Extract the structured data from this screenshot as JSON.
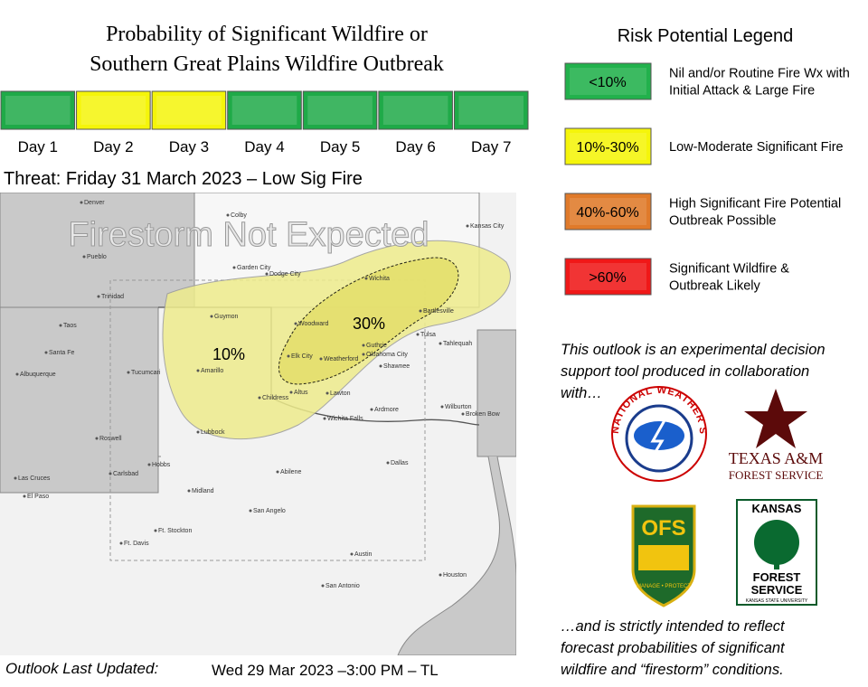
{
  "header": {
    "title_lines": [
      "Probability of  Significant Wildfire or",
      "Southern Great Plains Wildfire Outbreak"
    ]
  },
  "days": [
    {
      "label": "Day 1",
      "color": "#1faa48"
    },
    {
      "label": "Day 2",
      "color": "#f5f50a"
    },
    {
      "label": "Day 3",
      "color": "#f5f50a"
    },
    {
      "label": "Day 4",
      "color": "#1faa48"
    },
    {
      "label": "Day 5",
      "color": "#1faa48"
    },
    {
      "label": "Day 6",
      "color": "#1faa48"
    },
    {
      "label": "Day 7",
      "color": "#1faa48"
    }
  ],
  "threat": "Threat: Friday 31 March 2023 – Low Sig Fire",
  "map": {
    "banner": "Firestorm Not Expected",
    "areas": [
      {
        "label": "10%",
        "color": "#eeec8c"
      },
      {
        "label": "30%",
        "color": "#e4df6a"
      }
    ],
    "cities": [
      "Denver",
      "Colby",
      "Pueblo",
      "Garden City",
      "Dodge City",
      "Wichita",
      "Kansas City",
      "Trinidad",
      "Guymon",
      "Woodward",
      "Bartlesville",
      "Tulsa",
      "Taos",
      "Santa Fe",
      "Albuquerque",
      "Tucumcari",
      "Amarillo",
      "Elk City",
      "Weatherford",
      "Guthrie",
      "Oklahoma City",
      "Shawnee",
      "Tahlequah",
      "Childress",
      "Altus",
      "Lawton",
      "Wichita Falls",
      "Ardmore",
      "Wilburton",
      "Broken Bow",
      "Lubbock",
      "Roswell",
      "Hobbs",
      "Carlsbad",
      "Las Cruces",
      "El Paso",
      "Midland",
      "Abilene",
      "Dallas",
      "San Angelo",
      "Ft. Stockton",
      "Ft. Davis",
      "Austin",
      "Houston",
      "San Antonio"
    ]
  },
  "legend": {
    "title": "Risk Potential Legend",
    "items": [
      {
        "range": "<10%",
        "color": "#22b14c",
        "description": [
          "Nil and/or Routine Fire Wx with",
          "Initial Attack & Large Fire"
        ]
      },
      {
        "range": "10%-30%",
        "color": "#f5f50a",
        "description": [
          "Low-Moderate Significant Fire"
        ]
      },
      {
        "range": "40%-60%",
        "color": "#e07a2a",
        "description": [
          "High Significant Fire Potential",
          "Outbreak Possible"
        ]
      },
      {
        "range": ">60%",
        "color": "#f01818",
        "description": [
          "Significant Wildfire &",
          "Outbreak Likely"
        ]
      }
    ]
  },
  "note": [
    "This outlook is an experimental decision",
    "support tool produced in collaboration",
    "with…"
  ],
  "logos": {
    "nws": "NATIONAL WEATHER SERVICE",
    "tamu": [
      "TEXAS A&M",
      "FOREST SERVICE"
    ],
    "ofs": [
      "OFS",
      "MANAGE • PROTECT"
    ],
    "kansas": [
      "KANSAS",
      "FOREST",
      "SERVICE",
      "KANSAS STATE UNIVERSITY"
    ]
  },
  "closing": [
    "…and is strictly intended to reflect",
    "forecast probabilities of significant",
    "wildfire and “firestorm” conditions."
  ],
  "footer": {
    "label": "Outlook Last Updated:",
    "value": "Wed 29 Mar 2023 –3:00 PM – TL"
  }
}
